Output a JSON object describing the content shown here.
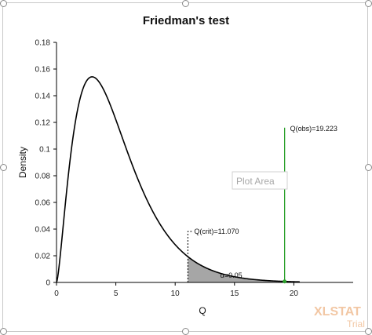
{
  "chart_data": {
    "type": "line",
    "title": "Friedman's test",
    "xlabel": "Q",
    "ylabel": "Density",
    "xlim": [
      0,
      25
    ],
    "ylim": [
      0,
      0.18
    ],
    "x_ticks": [
      "0",
      "5",
      "10",
      "15",
      "20"
    ],
    "y_ticks": [
      "0",
      "0.02",
      "0.04",
      "0.06",
      "0.08",
      "0.1",
      "0.12",
      "0.14",
      "0.16",
      "0.18"
    ],
    "distribution": {
      "name": "chi-square",
      "df": 5,
      "x_max": 20.5
    },
    "critical": {
      "label": "Q(crit)=11.070",
      "x": 11.07
    },
    "observed": {
      "label": "Q(obs)=19.223",
      "x": 19.223,
      "line_top": 0.116
    },
    "alpha_label": "α=0.05",
    "grid": false,
    "colors": {
      "curve": "#000000",
      "shade": "#a6a6a6",
      "observed": "#2ca02c"
    }
  },
  "overlay": {
    "plot_area_tip": "Plot Area"
  },
  "watermark": {
    "line1": "XLSTAT",
    "line2": "Trial"
  }
}
